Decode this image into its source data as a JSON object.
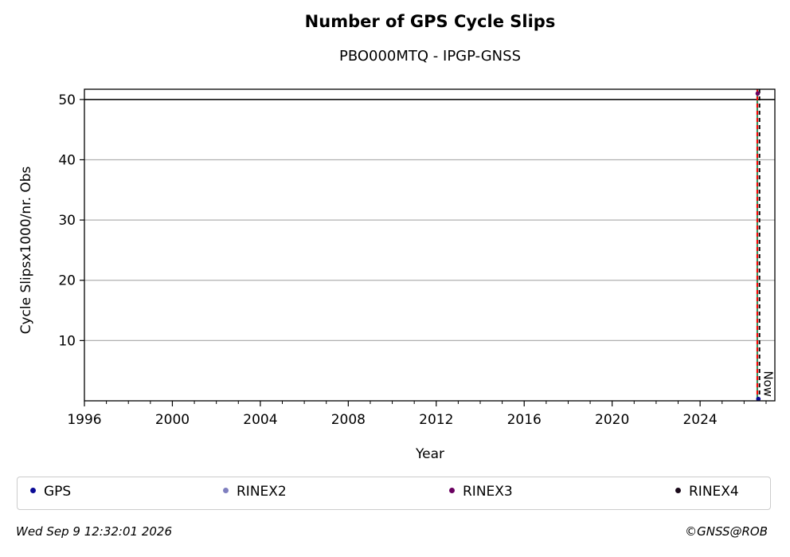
{
  "chart_data": {
    "type": "scatter",
    "title": "Number of GPS Cycle Slips",
    "subtitle": "PBO000MTQ - IPGP-GNSS",
    "xlabel": "Year",
    "ylabel": "Cycle Slipsx1000/nr. Obs",
    "xlim": [
      1996,
      2027.4
    ],
    "ylim": [
      0,
      51.7
    ],
    "x_ticks": [
      1996,
      2000,
      2004,
      2008,
      2012,
      2016,
      2020,
      2024
    ],
    "y_ticks": [
      10,
      20,
      30,
      40,
      50
    ],
    "grid": "horizontal",
    "threshold_line": 50,
    "vertical_lines": [
      {
        "x": 2026.6,
        "style": "solid",
        "color": "#2e8b57"
      },
      {
        "x": 2026.6,
        "style": "dashed",
        "color": "#ff0000"
      },
      {
        "x": 2026.7,
        "style": "dashed",
        "color": "#000000",
        "label": "Now"
      }
    ],
    "series": [
      {
        "name": "GPS",
        "color": "#0a0a96",
        "points": [
          [
            2026.65,
            0.3
          ]
        ]
      },
      {
        "name": "RINEX2",
        "color": "#7f7fbf",
        "points": []
      },
      {
        "name": "RINEX3",
        "color": "#6a0060",
        "points": [
          [
            2026.62,
            51.0
          ]
        ]
      },
      {
        "name": "RINEX4",
        "color": "#1a0a1a",
        "points": []
      }
    ],
    "legend_placement": "bottom"
  },
  "footer": {
    "timestamp": "Wed Sep  9 12:32:01 2026",
    "copyright": "©GNSS@ROB"
  }
}
